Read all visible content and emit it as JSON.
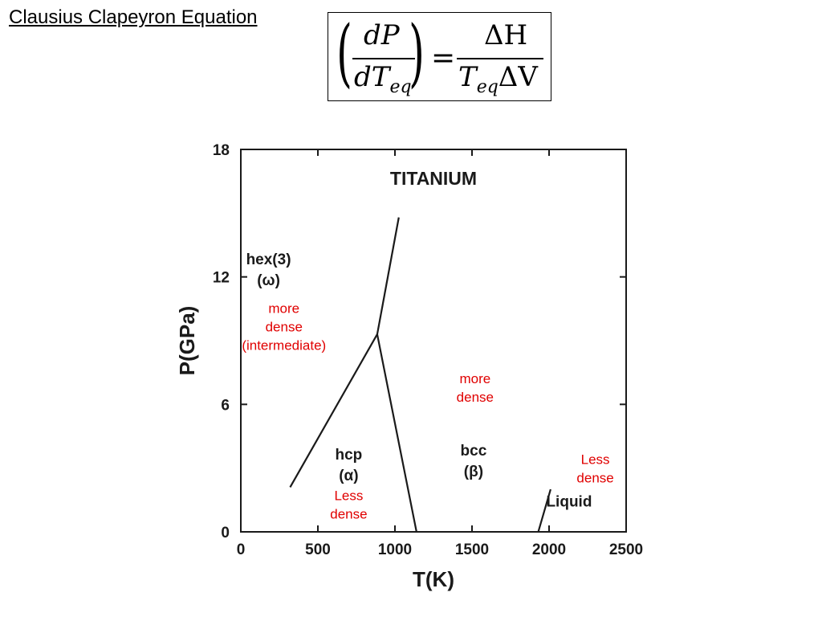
{
  "slide": {
    "title": "Clausius Clapeyron Equation"
  },
  "equation": {
    "lhs_numerator": "dP",
    "lhs_denominator_base": "dT",
    "lhs_denominator_sub": "eq",
    "equals": "=",
    "rhs_numerator": "ΔH",
    "rhs_denominator_base": "T",
    "rhs_denominator_sub": "eq",
    "rhs_denominator_tail": "ΔV"
  },
  "colors": {
    "annotation": "#e00000",
    "ink": "#1a1a1a"
  },
  "chart_data": {
    "type": "line",
    "title": "TITANIUM",
    "xlabel": "T(K)",
    "ylabel": "P(GPa)",
    "xlim": [
      0,
      2500
    ],
    "ylim": [
      0,
      18
    ],
    "xticks": [
      0,
      500,
      1000,
      1500,
      2000,
      2500
    ],
    "yticks": [
      0,
      6,
      12,
      18
    ],
    "grid": false,
    "series": [
      {
        "points": [
          [
            320,
            2.1
          ],
          [
            885,
            9.3
          ]
        ]
      },
      {
        "points": [
          [
            885,
            9.3
          ],
          [
            1025,
            14.8
          ]
        ]
      },
      {
        "points": [
          [
            885,
            9.3
          ],
          [
            1140,
            0
          ]
        ]
      },
      {
        "points": [
          [
            1930,
            0
          ],
          [
            2010,
            2.0
          ]
        ]
      }
    ],
    "phase_labels": [
      {
        "lines": [
          "hex(3)",
          "(ω)"
        ],
        "x": 180,
        "y": 12.6
      },
      {
        "lines": [
          "hcp",
          "(α)"
        ],
        "x": 700,
        "y": 3.4
      },
      {
        "lines": [
          "bcc",
          "(β)"
        ],
        "x": 1510,
        "y": 3.6
      },
      {
        "lines": [
          "Liquid"
        ],
        "x": 2130,
        "y": 1.2
      }
    ],
    "annotations": [
      {
        "lines": [
          "more",
          "dense",
          "(intermediate)"
        ],
        "x": 280,
        "y": 10.3
      },
      {
        "lines": [
          "more",
          "dense"
        ],
        "x": 1520,
        "y": 7.0
      },
      {
        "lines": [
          "Less",
          "dense"
        ],
        "x": 2300,
        "y": 3.2
      },
      {
        "lines": [
          "Less",
          "dense"
        ],
        "x": 700,
        "y": 1.5
      }
    ]
  }
}
